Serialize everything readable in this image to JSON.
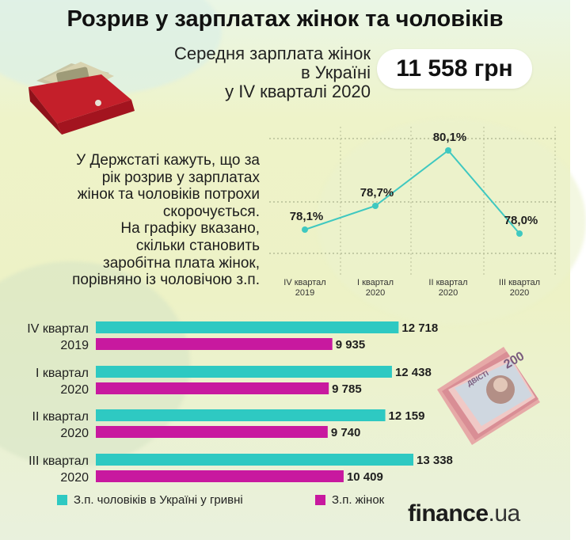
{
  "header": {
    "title": "Розрив у зарплатах жінок та чоловіків",
    "subtitle_lines": [
      "Середня зарплата жінок",
      "в Україні",
      "у IV кварталі 2020"
    ],
    "salary_value": "11 558 грн"
  },
  "description_lines": [
    "У Держстаті кажуть, що за",
    "рік розрив у зарплатах",
    "жінок та чоловіків потрохи",
    "скорочується.",
    "На графіку вказано,",
    "скільки становить",
    "заробітна плата жінок,",
    "порівняно із чоловічою з.п."
  ],
  "brand": {
    "name": "finance",
    "suffix": ".ua"
  },
  "colors": {
    "men": "#2ec9c2",
    "women": "#c8199f",
    "line": "#3fc8c0",
    "text": "#1f1f1f"
  },
  "chart_data": [
    {
      "type": "line",
      "categories": [
        [
          "IV квартал",
          "2019"
        ],
        [
          "I квартал",
          "2020"
        ],
        [
          "II квартал",
          "2020"
        ],
        [
          "III квартал",
          "2020"
        ]
      ],
      "series": [
        {
          "values": [
            78.1,
            78.7,
            80.1,
            78.0
          ],
          "labels": [
            "78,1%",
            "78,7%",
            "80,1%",
            "78,0%"
          ]
        }
      ],
      "ylim": [
        77.5,
        80.5
      ],
      "grid": "dotted-horizontal"
    },
    {
      "type": "bar",
      "orientation": "horizontal",
      "categories": [
        [
          "IV квартал",
          "2019"
        ],
        [
          "I квартал",
          "2020"
        ],
        [
          "II квартал",
          "2020"
        ],
        [
          "III квартал",
          "2020"
        ]
      ],
      "series": [
        {
          "name": "З.п. чоловіків в Україні у гривні",
          "values": [
            12718,
            12438,
            12159,
            13338
          ],
          "labels": [
            "12 718",
            "12 438",
            "12 159",
            "13 338"
          ]
        },
        {
          "name": "З.п. жінок",
          "values": [
            9935,
            9785,
            9740,
            10409
          ],
          "labels": [
            "9 935",
            "9 785",
            "9 740",
            "10 409"
          ]
        }
      ],
      "xlim": [
        0,
        13338
      ],
      "legend": "bottom-left"
    }
  ]
}
